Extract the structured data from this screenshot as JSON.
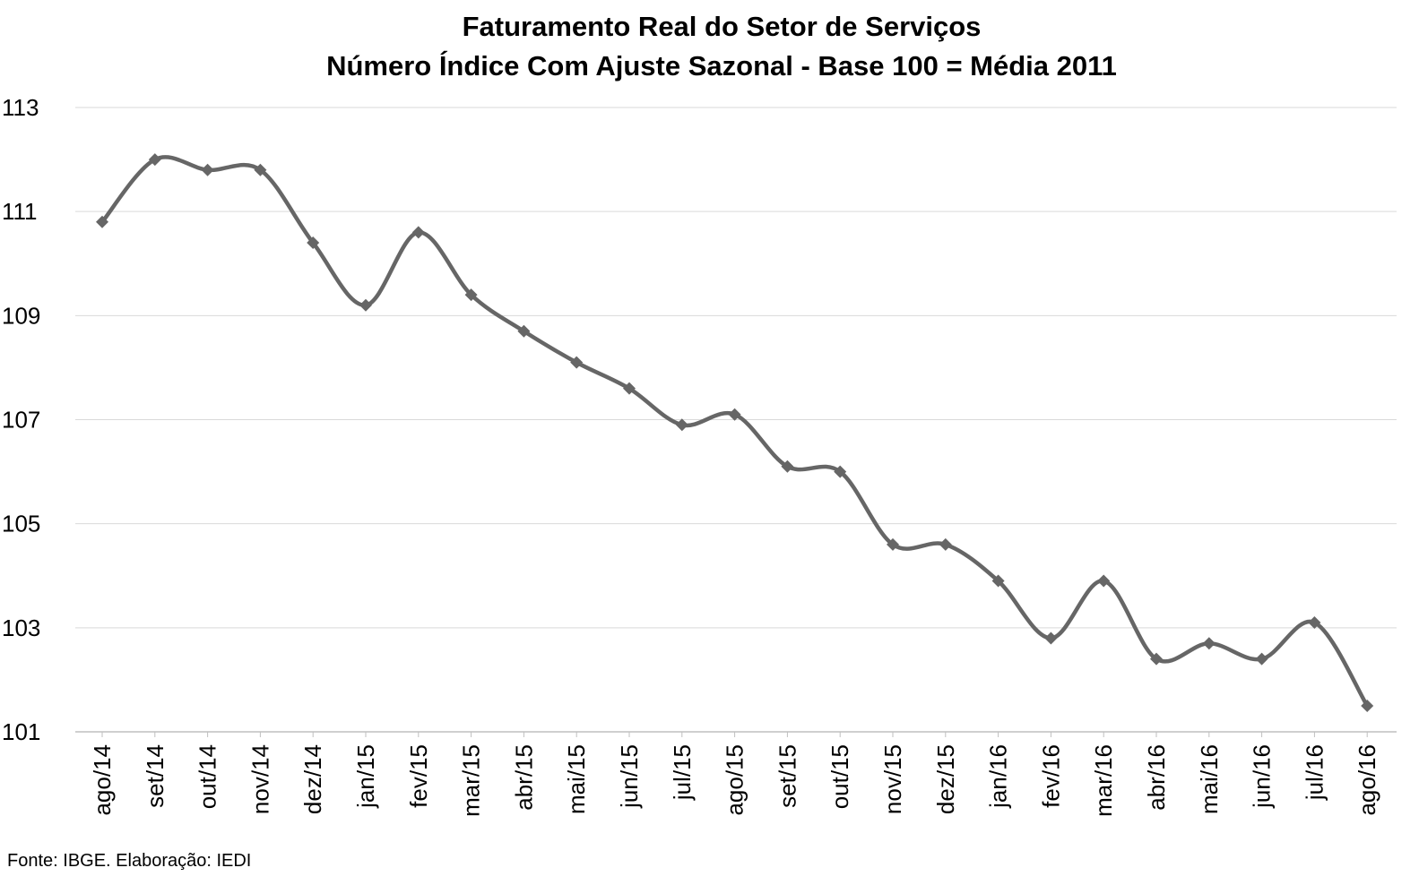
{
  "chart_data": {
    "type": "line",
    "title": "Faturamento Real do Setor de Serviços",
    "subtitle": "Número Índice Com Ajuste Sazonal - Base 100 = Média 2011",
    "xlabel": "",
    "ylabel": "",
    "ylim": [
      101,
      113
    ],
    "yticks": [
      101,
      103,
      105,
      107,
      109,
      111,
      113
    ],
    "grid": true,
    "legend": "none",
    "categories": [
      "ago/14",
      "set/14",
      "out/14",
      "nov/14",
      "dez/14",
      "jan/15",
      "fev/15",
      "mar/15",
      "abr/15",
      "mai/15",
      "jun/15",
      "jul/15",
      "ago/15",
      "set/15",
      "out/15",
      "nov/15",
      "dez/15",
      "jan/16",
      "fev/16",
      "mar/16",
      "abr/16",
      "mai/16",
      "jun/16",
      "jul/16",
      "ago/16"
    ],
    "series": [
      {
        "values": [
          110.8,
          112.0,
          111.8,
          111.8,
          110.4,
          109.2,
          110.6,
          109.4,
          108.7,
          108.1,
          107.6,
          106.9,
          107.1,
          106.1,
          106.0,
          104.6,
          104.6,
          103.9,
          102.8,
          103.9,
          102.4,
          102.7,
          102.4,
          103.1,
          101.5
        ],
        "color": "#666666"
      }
    ]
  },
  "source": "Fonte: IBGE. Elaboração: IEDI"
}
